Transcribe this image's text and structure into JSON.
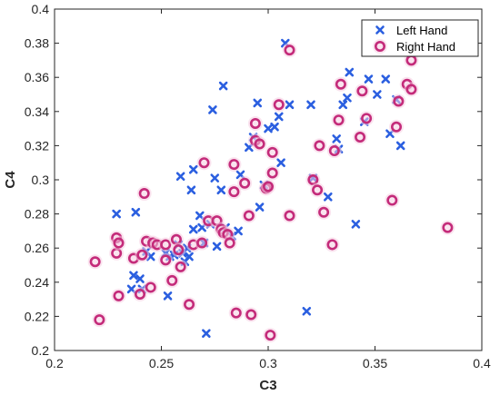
{
  "chart_data": {
    "type": "scatter",
    "xlabel": "C3",
    "ylabel": "C4",
    "xlim": [
      0.2,
      0.4
    ],
    "ylim": [
      0.2,
      0.4
    ],
    "xticks": [
      "0.2",
      "0.25",
      "0.3",
      "0.35",
      "0.4"
    ],
    "yticks": [
      "0.2",
      "0.22",
      "0.24",
      "0.26",
      "0.28",
      "0.3",
      "0.32",
      "0.34",
      "0.36",
      "0.38",
      "0.4"
    ],
    "grid": false,
    "legend_position": "top-right",
    "series": [
      {
        "name": "Left Hand",
        "marker": "x",
        "color": "#2b5fe0",
        "points": [
          [
            0.229,
            0.28
          ],
          [
            0.236,
            0.236
          ],
          [
            0.237,
            0.244
          ],
          [
            0.238,
            0.281
          ],
          [
            0.24,
            0.242
          ],
          [
            0.241,
            0.236
          ],
          [
            0.243,
            0.258
          ],
          [
            0.245,
            0.255
          ],
          [
            0.252,
            0.257
          ],
          [
            0.253,
            0.232
          ],
          [
            0.254,
            0.255
          ],
          [
            0.256,
            0.256
          ],
          [
            0.258,
            0.262
          ],
          [
            0.259,
            0.302
          ],
          [
            0.26,
            0.257
          ],
          [
            0.261,
            0.252
          ],
          [
            0.262,
            0.26
          ],
          [
            0.263,
            0.255
          ],
          [
            0.264,
            0.294
          ],
          [
            0.265,
            0.271
          ],
          [
            0.265,
            0.306
          ],
          [
            0.268,
            0.279
          ],
          [
            0.269,
            0.272
          ],
          [
            0.27,
            0.263
          ],
          [
            0.271,
            0.21
          ],
          [
            0.273,
            0.274
          ],
          [
            0.274,
            0.341
          ],
          [
            0.275,
            0.301
          ],
          [
            0.276,
            0.261
          ],
          [
            0.278,
            0.294
          ],
          [
            0.279,
            0.355
          ],
          [
            0.28,
            0.272
          ],
          [
            0.283,
            0.267
          ],
          [
            0.286,
            0.27
          ],
          [
            0.287,
            0.303
          ],
          [
            0.291,
            0.319
          ],
          [
            0.293,
            0.325
          ],
          [
            0.295,
            0.345
          ],
          [
            0.296,
            0.284
          ],
          [
            0.298,
            0.297
          ],
          [
            0.3,
            0.33
          ],
          [
            0.303,
            0.331
          ],
          [
            0.305,
            0.337
          ],
          [
            0.306,
            0.31
          ],
          [
            0.308,
            0.38
          ],
          [
            0.31,
            0.344
          ],
          [
            0.318,
            0.223
          ],
          [
            0.32,
            0.344
          ],
          [
            0.321,
            0.301
          ],
          [
            0.328,
            0.29
          ],
          [
            0.332,
            0.324
          ],
          [
            0.333,
            0.318
          ],
          [
            0.335,
            0.344
          ],
          [
            0.337,
            0.348
          ],
          [
            0.338,
            0.363
          ],
          [
            0.341,
            0.274
          ],
          [
            0.345,
            0.334
          ],
          [
            0.347,
            0.359
          ],
          [
            0.351,
            0.35
          ],
          [
            0.355,
            0.359
          ],
          [
            0.357,
            0.327
          ],
          [
            0.36,
            0.347
          ],
          [
            0.362,
            0.32
          ]
        ]
      },
      {
        "name": "Right Hand",
        "marker": "o",
        "color": "#c42b7a",
        "points": [
          [
            0.219,
            0.252
          ],
          [
            0.221,
            0.218
          ],
          [
            0.229,
            0.257
          ],
          [
            0.229,
            0.266
          ],
          [
            0.23,
            0.232
          ],
          [
            0.23,
            0.263
          ],
          [
            0.237,
            0.254
          ],
          [
            0.24,
            0.233
          ],
          [
            0.241,
            0.256
          ],
          [
            0.242,
            0.292
          ],
          [
            0.243,
            0.264
          ],
          [
            0.245,
            0.237
          ],
          [
            0.246,
            0.263
          ],
          [
            0.248,
            0.262
          ],
          [
            0.252,
            0.262
          ],
          [
            0.252,
            0.253
          ],
          [
            0.255,
            0.241
          ],
          [
            0.257,
            0.265
          ],
          [
            0.258,
            0.259
          ],
          [
            0.259,
            0.249
          ],
          [
            0.263,
            0.227
          ],
          [
            0.265,
            0.262
          ],
          [
            0.269,
            0.263
          ],
          [
            0.27,
            0.31
          ],
          [
            0.272,
            0.276
          ],
          [
            0.276,
            0.276
          ],
          [
            0.278,
            0.271
          ],
          [
            0.279,
            0.269
          ],
          [
            0.281,
            0.268
          ],
          [
            0.282,
            0.263
          ],
          [
            0.284,
            0.309
          ],
          [
            0.284,
            0.293
          ],
          [
            0.285,
            0.222
          ],
          [
            0.289,
            0.298
          ],
          [
            0.291,
            0.279
          ],
          [
            0.292,
            0.221
          ],
          [
            0.294,
            0.333
          ],
          [
            0.294,
            0.323
          ],
          [
            0.296,
            0.321
          ],
          [
            0.299,
            0.295
          ],
          [
            0.3,
            0.296
          ],
          [
            0.301,
            0.209
          ],
          [
            0.302,
            0.304
          ],
          [
            0.302,
            0.316
          ],
          [
            0.305,
            0.344
          ],
          [
            0.31,
            0.376
          ],
          [
            0.31,
            0.279
          ],
          [
            0.321,
            0.3
          ],
          [
            0.323,
            0.294
          ],
          [
            0.324,
            0.32
          ],
          [
            0.326,
            0.281
          ],
          [
            0.33,
            0.262
          ],
          [
            0.331,
            0.317
          ],
          [
            0.333,
            0.335
          ],
          [
            0.334,
            0.356
          ],
          [
            0.343,
            0.325
          ],
          [
            0.344,
            0.352
          ],
          [
            0.346,
            0.336
          ],
          [
            0.358,
            0.288
          ],
          [
            0.36,
            0.331
          ],
          [
            0.361,
            0.346
          ],
          [
            0.365,
            0.356
          ],
          [
            0.367,
            0.353
          ],
          [
            0.367,
            0.37
          ],
          [
            0.384,
            0.272
          ]
        ]
      }
    ]
  }
}
